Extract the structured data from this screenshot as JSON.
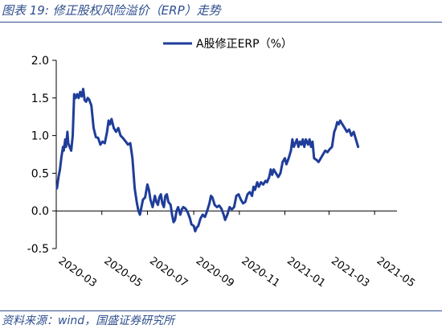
{
  "figure": {
    "title": "图表 19:  修正股权风险溢价（ERP）走势",
    "source": "资料来源：wind，国盛证券研究所"
  },
  "chart_data": {
    "type": "line",
    "legend_position": "top-center",
    "ylim": [
      -0.5,
      2.0
    ],
    "yticks": [
      "2.0",
      "1.5",
      "1.0",
      "0.5",
      "0.0",
      "-0.5"
    ],
    "ytick_values": [
      2.0,
      1.5,
      1.0,
      0.5,
      0.0,
      -0.5
    ],
    "xlim": [
      "2020-03-01",
      "2021-05-31"
    ],
    "xticks": [
      "2020-03",
      "2020-05",
      "2020-07",
      "2020-09",
      "2020-11",
      "2021-01",
      "2021-03",
      "2021-05"
    ],
    "xtick_dates": [
      "2020-03-01",
      "2020-05-01",
      "2020-07-01",
      "2020-09-01",
      "2020-11-01",
      "2021-01-01",
      "2021-03-01",
      "2021-05-01"
    ],
    "grid": false,
    "line_color": "#1f3d99",
    "series": [
      {
        "name": "A股修正ERP（%）",
        "points": [
          [
            "2020-03-02",
            0.3
          ],
          [
            "2020-03-04",
            0.45
          ],
          [
            "2020-03-06",
            0.55
          ],
          [
            "2020-03-08",
            0.72
          ],
          [
            "2020-03-10",
            0.85
          ],
          [
            "2020-03-11",
            0.8
          ],
          [
            "2020-03-13",
            0.95
          ],
          [
            "2020-03-14",
            0.85
          ],
          [
            "2020-03-16",
            1.05
          ],
          [
            "2020-03-17",
            0.9
          ],
          [
            "2020-03-19",
            0.85
          ],
          [
            "2020-03-21",
            0.8
          ],
          [
            "2020-03-23",
            1.0
          ],
          [
            "2020-03-25",
            1.55
          ],
          [
            "2020-03-27",
            1.5
          ],
          [
            "2020-03-29",
            1.55
          ],
          [
            "2020-03-31",
            1.5
          ],
          [
            "2020-04-02",
            1.58
          ],
          [
            "2020-04-04",
            1.52
          ],
          [
            "2020-04-06",
            1.62
          ],
          [
            "2020-04-08",
            1.47
          ],
          [
            "2020-04-10",
            1.45
          ],
          [
            "2020-04-12",
            1.5
          ],
          [
            "2020-04-14",
            1.48
          ],
          [
            "2020-04-17",
            1.4
          ],
          [
            "2020-04-20",
            1.1
          ],
          [
            "2020-04-23",
            0.98
          ],
          [
            "2020-04-26",
            0.97
          ],
          [
            "2020-04-29",
            0.88
          ],
          [
            "2020-05-02",
            0.92
          ],
          [
            "2020-05-05",
            0.9
          ],
          [
            "2020-05-08",
            1.05
          ],
          [
            "2020-05-10",
            1.2
          ],
          [
            "2020-05-12",
            1.15
          ],
          [
            "2020-05-14",
            1.22
          ],
          [
            "2020-05-17",
            1.1
          ],
          [
            "2020-05-20",
            1.05
          ],
          [
            "2020-05-23",
            1.1
          ],
          [
            "2020-05-26",
            1.0
          ],
          [
            "2020-05-29",
            0.97
          ],
          [
            "2020-06-02",
            0.92
          ],
          [
            "2020-06-05",
            0.88
          ],
          [
            "2020-06-08",
            0.9
          ],
          [
            "2020-06-11",
            0.7
          ],
          [
            "2020-06-14",
            0.3
          ],
          [
            "2020-06-17",
            0.1
          ],
          [
            "2020-06-19",
            0.0
          ],
          [
            "2020-06-21",
            -0.05
          ],
          [
            "2020-06-23",
            0.05
          ],
          [
            "2020-06-25",
            0.15
          ],
          [
            "2020-06-28",
            0.18
          ],
          [
            "2020-07-01",
            0.35
          ],
          [
            "2020-07-03",
            0.28
          ],
          [
            "2020-07-05",
            0.15
          ],
          [
            "2020-07-08",
            0.05
          ],
          [
            "2020-07-11",
            0.2
          ],
          [
            "2020-07-13",
            0.12
          ],
          [
            "2020-07-15",
            0.08
          ],
          [
            "2020-07-17",
            0.18
          ],
          [
            "2020-07-19",
            0.22
          ],
          [
            "2020-07-21",
            0.1
          ],
          [
            "2020-07-23",
            0.05
          ],
          [
            "2020-07-25",
            0.2
          ],
          [
            "2020-07-27",
            0.22
          ],
          [
            "2020-07-29",
            0.12
          ],
          [
            "2020-08-01",
            0.08
          ],
          [
            "2020-08-03",
            -0.05
          ],
          [
            "2020-08-05",
            -0.15
          ],
          [
            "2020-08-07",
            -0.12
          ],
          [
            "2020-08-09",
            0.0
          ],
          [
            "2020-08-11",
            0.05
          ],
          [
            "2020-08-14",
            -0.05
          ],
          [
            "2020-08-16",
            0.02
          ],
          [
            "2020-08-18",
            0.05
          ],
          [
            "2020-08-21",
            0.03
          ],
          [
            "2020-08-24",
            -0.02
          ],
          [
            "2020-08-27",
            -0.1
          ],
          [
            "2020-08-29",
            -0.18
          ],
          [
            "2020-09-01",
            -0.2
          ],
          [
            "2020-09-03",
            -0.27
          ],
          [
            "2020-09-05",
            -0.22
          ],
          [
            "2020-09-07",
            -0.2
          ],
          [
            "2020-09-10",
            -0.1
          ],
          [
            "2020-09-13",
            -0.05
          ],
          [
            "2020-09-16",
            -0.08
          ],
          [
            "2020-09-19",
            0.0
          ],
          [
            "2020-09-22",
            0.1
          ],
          [
            "2020-09-24",
            0.2
          ],
          [
            "2020-09-26",
            0.18
          ],
          [
            "2020-09-29",
            0.08
          ],
          [
            "2020-10-02",
            0.05
          ],
          [
            "2020-10-05",
            0.07
          ],
          [
            "2020-10-08",
            0.03
          ],
          [
            "2020-10-11",
            -0.05
          ],
          [
            "2020-10-13",
            -0.12
          ],
          [
            "2020-10-16",
            -0.05
          ],
          [
            "2020-10-19",
            0.05
          ],
          [
            "2020-10-22",
            0.02
          ],
          [
            "2020-10-25",
            0.05
          ],
          [
            "2020-10-28",
            0.2
          ],
          [
            "2020-10-31",
            0.22
          ],
          [
            "2020-11-03",
            0.15
          ],
          [
            "2020-11-06",
            0.1
          ],
          [
            "2020-11-09",
            0.12
          ],
          [
            "2020-11-12",
            0.22
          ],
          [
            "2020-11-15",
            0.25
          ],
          [
            "2020-11-18",
            0.2
          ],
          [
            "2020-11-20",
            0.32
          ],
          [
            "2020-11-22",
            0.28
          ],
          [
            "2020-11-25",
            0.38
          ],
          [
            "2020-11-27",
            0.32
          ],
          [
            "2020-11-30",
            0.38
          ],
          [
            "2020-12-03",
            0.35
          ],
          [
            "2020-12-06",
            0.4
          ],
          [
            "2020-12-08",
            0.38
          ],
          [
            "2020-12-11",
            0.45
          ],
          [
            "2020-12-13",
            0.55
          ],
          [
            "2020-12-15",
            0.48
          ],
          [
            "2020-12-17",
            0.55
          ],
          [
            "2020-12-20",
            0.5
          ],
          [
            "2020-12-23",
            0.45
          ],
          [
            "2020-12-26",
            0.5
          ],
          [
            "2020-12-29",
            0.65
          ],
          [
            "2021-01-01",
            0.7
          ],
          [
            "2021-01-03",
            0.62
          ],
          [
            "2021-01-06",
            0.7
          ],
          [
            "2021-01-09",
            0.8
          ],
          [
            "2021-01-11",
            0.95
          ],
          [
            "2021-01-13",
            0.85
          ],
          [
            "2021-01-15",
            0.9
          ],
          [
            "2021-01-17",
            0.95
          ],
          [
            "2021-01-19",
            0.85
          ],
          [
            "2021-01-21",
            0.92
          ],
          [
            "2021-01-23",
            0.88
          ],
          [
            "2021-01-25",
            0.95
          ],
          [
            "2021-01-27",
            0.85
          ],
          [
            "2021-01-29",
            0.95
          ],
          [
            "2021-02-01",
            0.88
          ],
          [
            "2021-02-03",
            0.95
          ],
          [
            "2021-02-05",
            0.85
          ],
          [
            "2021-02-07",
            0.92
          ],
          [
            "2021-02-09",
            0.7
          ],
          [
            "2021-02-12",
            0.68
          ],
          [
            "2021-02-15",
            0.65
          ],
          [
            "2021-02-18",
            0.7
          ],
          [
            "2021-02-21",
            0.75
          ],
          [
            "2021-02-24",
            0.8
          ],
          [
            "2021-02-27",
            0.78
          ],
          [
            "2021-03-02",
            0.82
          ],
          [
            "2021-03-05",
            0.85
          ],
          [
            "2021-03-08",
            1.05
          ],
          [
            "2021-03-10",
            1.1
          ],
          [
            "2021-03-12",
            1.18
          ],
          [
            "2021-03-14",
            1.15
          ],
          [
            "2021-03-16",
            1.2
          ],
          [
            "2021-03-19",
            1.15
          ],
          [
            "2021-03-22",
            1.1
          ],
          [
            "2021-03-25",
            1.05
          ],
          [
            "2021-03-28",
            1.08
          ],
          [
            "2021-03-31",
            1.0
          ],
          [
            "2021-04-03",
            1.05
          ],
          [
            "2021-04-06",
            0.95
          ],
          [
            "2021-04-09",
            0.85
          ]
        ]
      }
    ]
  }
}
